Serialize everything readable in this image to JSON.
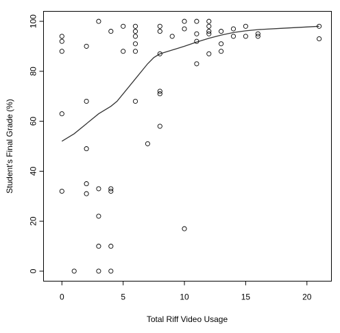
{
  "chart_data": {
    "type": "scatter",
    "title": "",
    "xlabel": "Total Riff Video Usage",
    "ylabel": "Student's Final Grade (%)",
    "xlim": [
      -1.5,
      22
    ],
    "ylim": [
      -4,
      104
    ],
    "x_ticks": [
      0,
      5,
      10,
      15,
      20
    ],
    "y_ticks": [
      0,
      20,
      40,
      60,
      80,
      100
    ],
    "grid": false,
    "legend": "none",
    "colors": {
      "points": "#000000",
      "smooth_line": "#333333",
      "axes": "#000000"
    },
    "points": [
      {
        "x": 0,
        "y": 94
      },
      {
        "x": 0,
        "y": 92
      },
      {
        "x": 0,
        "y": 88
      },
      {
        "x": 0,
        "y": 63
      },
      {
        "x": 0,
        "y": 32
      },
      {
        "x": 1,
        "y": 0
      },
      {
        "x": 2,
        "y": 90
      },
      {
        "x": 2,
        "y": 68
      },
      {
        "x": 2,
        "y": 49
      },
      {
        "x": 2,
        "y": 35
      },
      {
        "x": 2,
        "y": 31
      },
      {
        "x": 3,
        "y": 100
      },
      {
        "x": 3,
        "y": 33
      },
      {
        "x": 3,
        "y": 22
      },
      {
        "x": 3,
        "y": 10
      },
      {
        "x": 3,
        "y": 0
      },
      {
        "x": 4,
        "y": 96
      },
      {
        "x": 4,
        "y": 33
      },
      {
        "x": 4,
        "y": 32
      },
      {
        "x": 4,
        "y": 10
      },
      {
        "x": 4,
        "y": 0
      },
      {
        "x": 5,
        "y": 98
      },
      {
        "x": 5,
        "y": 88
      },
      {
        "x": 6,
        "y": 98
      },
      {
        "x": 6,
        "y": 96
      },
      {
        "x": 6,
        "y": 94
      },
      {
        "x": 6,
        "y": 91
      },
      {
        "x": 6,
        "y": 88
      },
      {
        "x": 6,
        "y": 68
      },
      {
        "x": 7,
        "y": 51
      },
      {
        "x": 8,
        "y": 98
      },
      {
        "x": 8,
        "y": 96
      },
      {
        "x": 8,
        "y": 87
      },
      {
        "x": 8,
        "y": 72
      },
      {
        "x": 8,
        "y": 71
      },
      {
        "x": 8,
        "y": 58
      },
      {
        "x": 9,
        "y": 94
      },
      {
        "x": 10,
        "y": 100
      },
      {
        "x": 10,
        "y": 97
      },
      {
        "x": 10,
        "y": 17
      },
      {
        "x": 11,
        "y": 100
      },
      {
        "x": 11,
        "y": 95
      },
      {
        "x": 11,
        "y": 92
      },
      {
        "x": 11,
        "y": 83
      },
      {
        "x": 12,
        "y": 100
      },
      {
        "x": 12,
        "y": 98
      },
      {
        "x": 12,
        "y": 96
      },
      {
        "x": 12,
        "y": 95
      },
      {
        "x": 12,
        "y": 87
      },
      {
        "x": 13,
        "y": 96
      },
      {
        "x": 13,
        "y": 91
      },
      {
        "x": 13,
        "y": 88
      },
      {
        "x": 14,
        "y": 97
      },
      {
        "x": 14,
        "y": 94
      },
      {
        "x": 15,
        "y": 98
      },
      {
        "x": 15,
        "y": 94
      },
      {
        "x": 16,
        "y": 95
      },
      {
        "x": 16,
        "y": 94
      },
      {
        "x": 21,
        "y": 98
      },
      {
        "x": 21,
        "y": 93
      }
    ],
    "smooth_line": [
      {
        "x": 0,
        "y": 52
      },
      {
        "x": 1,
        "y": 55
      },
      {
        "x": 2,
        "y": 59
      },
      {
        "x": 3,
        "y": 63
      },
      {
        "x": 4,
        "y": 66
      },
      {
        "x": 4.5,
        "y": 68
      },
      {
        "x": 5,
        "y": 71
      },
      {
        "x": 6,
        "y": 77
      },
      {
        "x": 7,
        "y": 83
      },
      {
        "x": 7.5,
        "y": 85.5
      },
      {
        "x": 8,
        "y": 87
      },
      {
        "x": 9,
        "y": 88.5
      },
      {
        "x": 10,
        "y": 90
      },
      {
        "x": 11,
        "y": 91.7
      },
      {
        "x": 12,
        "y": 93.2
      },
      {
        "x": 13,
        "y": 94.5
      },
      {
        "x": 14,
        "y": 95.5
      },
      {
        "x": 15,
        "y": 96.2
      },
      {
        "x": 16,
        "y": 96.7
      },
      {
        "x": 18,
        "y": 97.2
      },
      {
        "x": 21,
        "y": 98
      }
    ]
  }
}
